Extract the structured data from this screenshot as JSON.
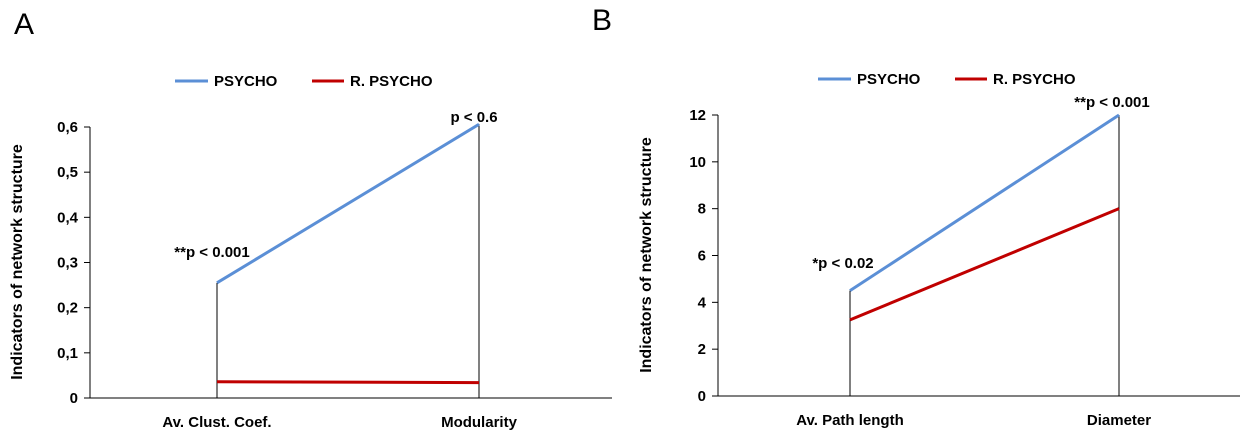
{
  "chart_data": [
    {
      "type": "line",
      "panel_label": "A",
      "ylabel": "Indicators of network structure",
      "ylim": [
        0,
        0.6
      ],
      "yticks": [
        "0",
        "0,1",
        "0,2",
        "0,3",
        "0,4",
        "0,5",
        "0,6"
      ],
      "ytick_values": [
        0,
        0.1,
        0.2,
        0.3,
        0.4,
        0.5,
        0.6
      ],
      "categories": [
        "Av. Clust. Coef.",
        "Modularity"
      ],
      "series": [
        {
          "name": "PSYCHO",
          "values": [
            0.255,
            0.606
          ],
          "color": "#5b8fd6"
        },
        {
          "name": "R. PSYCHO",
          "values": [
            0.036,
            0.034
          ],
          "color": "#c00000"
        }
      ],
      "annotations": [
        "**p < 0.001",
        "p < 0.6"
      ],
      "legend": "top-center"
    },
    {
      "type": "line",
      "panel_label": "B",
      "ylabel": "Indicators of network structure",
      "ylim": [
        0,
        12
      ],
      "yticks": [
        "0",
        "2",
        "4",
        "6",
        "8",
        "10",
        "12"
      ],
      "ytick_values": [
        0,
        2,
        4,
        6,
        8,
        10,
        12
      ],
      "categories": [
        "Av. Path length",
        "Diameter"
      ],
      "series": [
        {
          "name": "PSYCHO",
          "values": [
            4.5,
            12
          ],
          "color": "#5b8fd6"
        },
        {
          "name": "R. PSYCHO",
          "values": [
            3.25,
            8
          ],
          "color": "#c00000"
        }
      ],
      "annotations": [
        "*p < 0.02",
        "**p < 0.001"
      ],
      "legend": "top-center"
    }
  ]
}
